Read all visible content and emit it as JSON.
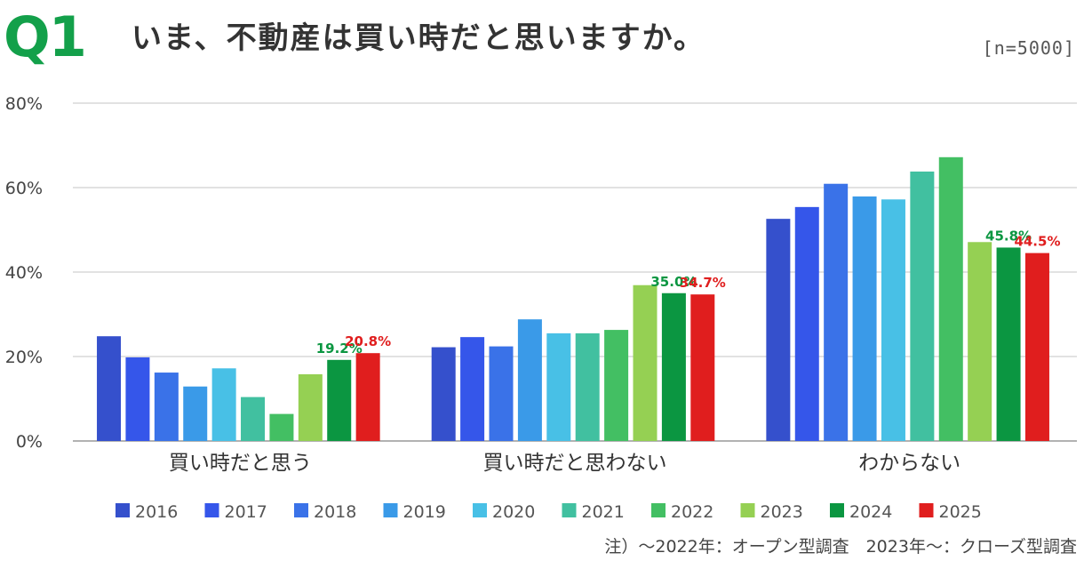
{
  "header": {
    "question_label": "Q1",
    "title": "いま、不動産は買い時だと思いますか。",
    "sample_size": "[n=5000]"
  },
  "note": "注）〜2022年：オープン型調査　2023年〜：クローズ型調査",
  "chart_data": {
    "type": "bar",
    "ylim": [
      0,
      80
    ],
    "yticks": [
      "0%",
      "20%",
      "40%",
      "60%",
      "80%"
    ],
    "grid": true,
    "legend_position": "bottom",
    "categories": [
      "買い時だと思う",
      "買い時だと思わない",
      "わからない"
    ],
    "series": [
      {
        "name": "2016",
        "color": "#3550cc",
        "values": [
          24.8,
          22.2,
          52.6
        ]
      },
      {
        "name": "2017",
        "color": "#3556ea",
        "values": [
          19.8,
          24.6,
          55.4
        ]
      },
      {
        "name": "2018",
        "color": "#3a72e8",
        "values": [
          16.2,
          22.4,
          60.9
        ]
      },
      {
        "name": "2019",
        "color": "#3a9ae8",
        "values": [
          12.9,
          28.8,
          57.9
        ]
      },
      {
        "name": "2020",
        "color": "#48c0e6",
        "values": [
          17.2,
          25.5,
          57.2
        ]
      },
      {
        "name": "2021",
        "color": "#41c0a0",
        "values": [
          10.4,
          25.5,
          63.8
        ]
      },
      {
        "name": "2022",
        "color": "#43bf63",
        "values": [
          6.4,
          26.3,
          67.2
        ]
      },
      {
        "name": "2023",
        "color": "#95d053",
        "values": [
          15.8,
          36.9,
          47.1
        ]
      },
      {
        "name": "2024",
        "color": "#0b9641",
        "values": [
          19.2,
          35.0,
          45.8
        ]
      },
      {
        "name": "2025",
        "color": "#e01e1e",
        "values": [
          20.8,
          34.7,
          44.5
        ]
      }
    ],
    "data_labels": [
      {
        "series": "2024",
        "color": "#0b9641",
        "labels": [
          "19.2%",
          "35.0%",
          "45.8%"
        ]
      },
      {
        "series": "2025",
        "color": "#e01e1e",
        "labels": [
          "20.8%",
          "34.7%",
          "44.5%"
        ]
      }
    ]
  }
}
